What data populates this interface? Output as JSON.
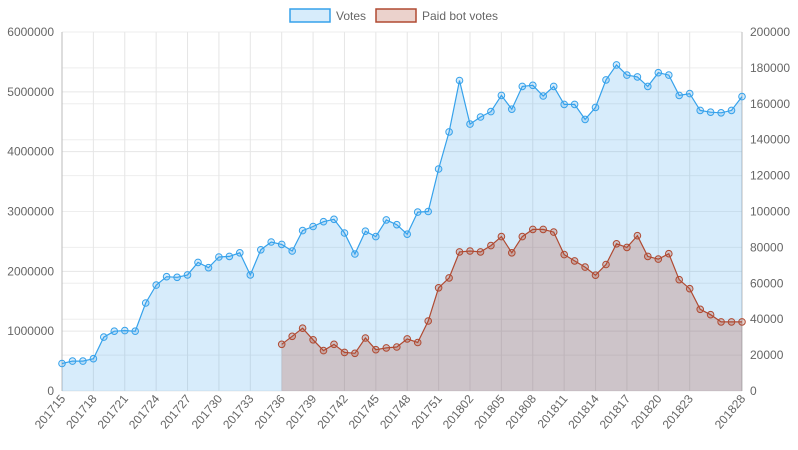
{
  "chart_data": {
    "type": "line",
    "x": [
      "201715",
      "201716",
      "201717",
      "201718",
      "201719",
      "201720",
      "201721",
      "201722",
      "201723",
      "201724",
      "201725",
      "201726",
      "201727",
      "201728",
      "201729",
      "201730",
      "201731",
      "201732",
      "201733",
      "201734",
      "201735",
      "201736",
      "201737",
      "201738",
      "201739",
      "201740",
      "201741",
      "201742",
      "201743",
      "201744",
      "201745",
      "201746",
      "201747",
      "201748",
      "201749",
      "201750",
      "201751",
      "201752",
      "201801",
      "201802",
      "201803",
      "201804",
      "201805",
      "201806",
      "201807",
      "201808",
      "201809",
      "201810",
      "201811",
      "201812",
      "201813",
      "201814",
      "201815",
      "201816",
      "201817",
      "201818",
      "201819",
      "201820",
      "201821",
      "201822",
      "201823",
      "201824",
      "201825",
      "201826",
      "201827",
      "201828"
    ],
    "x_tick_labels": [
      "201715",
      "201718",
      "201721",
      "201724",
      "201727",
      "201730",
      "201733",
      "201736",
      "201739",
      "201742",
      "201745",
      "201748",
      "201751",
      "201802",
      "201805",
      "201808",
      "201811",
      "201814",
      "201817",
      "201820",
      "201823",
      "201828"
    ],
    "series": [
      {
        "name": "Votes",
        "axis": "left",
        "color": "#36a2eb",
        "fill": "rgba(54,162,235,0.2)",
        "values": [
          460000,
          500000,
          500000,
          540000,
          900000,
          1000000,
          1010000,
          1000000,
          1470000,
          1770000,
          1910000,
          1900000,
          1940000,
          2150000,
          2060000,
          2240000,
          2250000,
          2310000,
          1940000,
          2360000,
          2490000,
          2450000,
          2340000,
          2680000,
          2750000,
          2830000,
          2870000,
          2640000,
          2290000,
          2670000,
          2580000,
          2860000,
          2780000,
          2620000,
          2990000,
          3000000,
          3710000,
          4330000,
          5190000,
          4460000,
          4580000,
          4670000,
          4940000,
          4710000,
          5090000,
          5110000,
          4930000,
          5090000,
          4790000,
          4790000,
          4540000,
          4740000,
          5200000,
          5450000,
          5280000,
          5250000,
          5090000,
          5320000,
          5280000,
          4940000,
          4970000,
          4690000,
          4660000,
          4650000,
          4690000,
          4920000
        ]
      },
      {
        "name": "Paid bot votes",
        "axis": "right",
        "color": "#b04a32",
        "fill": "rgba(176,74,50,0.25)",
        "values": [
          null,
          null,
          null,
          null,
          null,
          null,
          null,
          null,
          null,
          null,
          null,
          null,
          null,
          null,
          null,
          null,
          null,
          null,
          null,
          null,
          null,
          26000,
          30500,
          35000,
          28500,
          22500,
          26000,
          21500,
          21000,
          29500,
          23000,
          24000,
          24500,
          29000,
          27000,
          39000,
          57500,
          63000,
          77500,
          78000,
          77500,
          81000,
          86000,
          77000,
          86000,
          90000,
          90000,
          88500,
          76000,
          72500,
          69000,
          64500,
          70500,
          82000,
          80000,
          86500,
          75000,
          73500,
          76500,
          62000,
          57000,
          45500,
          42500,
          38500,
          38500,
          38500
        ]
      }
    ],
    "y_left": {
      "min": 0,
      "max": 6000000,
      "ticks": [
        "0",
        "1000000",
        "2000000",
        "3000000",
        "4000000",
        "5000000",
        "6000000"
      ]
    },
    "y_right": {
      "min": 0,
      "max": 200000,
      "ticks": [
        "0",
        "20000",
        "40000",
        "60000",
        "80000",
        "100000",
        "120000",
        "140000",
        "160000",
        "180000",
        "200000"
      ]
    },
    "legend": {
      "placement": "top-center",
      "items": [
        "Votes",
        "Paid bot votes"
      ]
    },
    "grid": true
  }
}
